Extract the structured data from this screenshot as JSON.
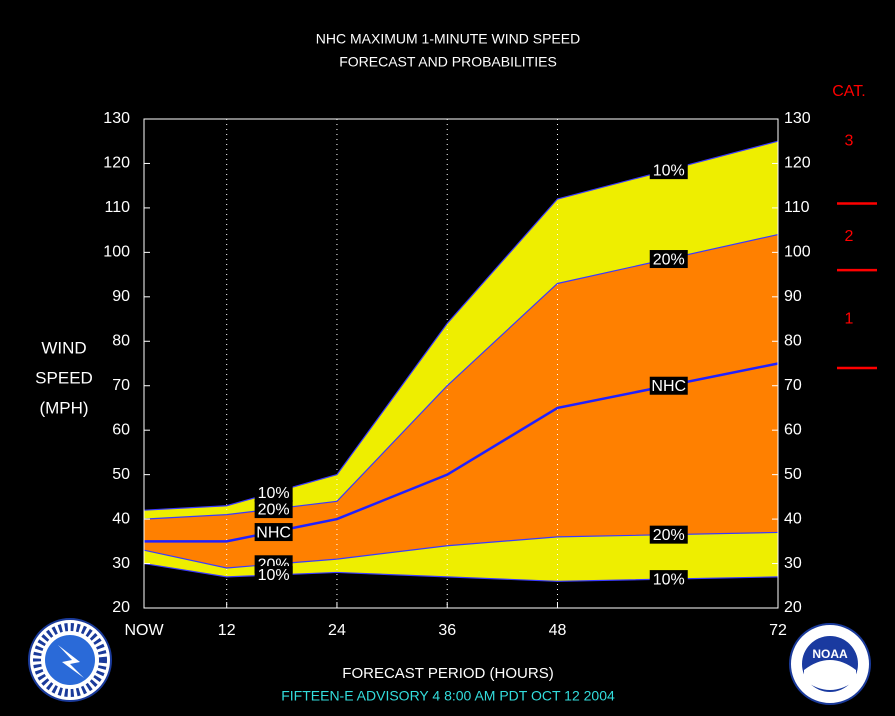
{
  "chart_data": {
    "type": "band-line",
    "title": [
      "NHC MAXIMUM 1-MINUTE WIND SPEED",
      "FORECAST AND PROBABILITIES"
    ],
    "y_label": [
      "WIND",
      "SPEED",
      "(MPH)"
    ],
    "x_label": "FORECAST PERIOD (HOURS)",
    "footer": "FIFTEEN-E   ADVISORY  4 8:00 AM PDT OCT 12 2004",
    "x": [
      3,
      12,
      24,
      36,
      48,
      72
    ],
    "xlim": [
      3,
      72
    ],
    "xticks": [
      {
        "value": 3,
        "label": "NOW"
      },
      12,
      24,
      36,
      48,
      72
    ],
    "ylim": [
      20,
      130
    ],
    "yticks": [
      20,
      30,
      40,
      50,
      60,
      70,
      80,
      90,
      100,
      110,
      120,
      130
    ],
    "grid": true,
    "series": [
      {
        "name": "10%",
        "color": "#3a3aff",
        "fill": "#eeee00",
        "values": [
          42,
          43,
          50,
          84,
          112,
          125
        ]
      },
      {
        "name": "20%",
        "color": "#3a3aff",
        "fill": "#ff8000",
        "values": [
          40,
          41,
          44,
          70,
          93,
          104
        ]
      },
      {
        "name": "NHC",
        "color": "#2020ff",
        "fill": "#ff8000",
        "values": [
          35,
          35,
          40,
          50,
          65,
          75
        ]
      },
      {
        "name": "20%",
        "color": "#3a3aff",
        "fill": "#eeee00",
        "values": [
          33,
          29,
          31,
          34,
          36,
          37
        ]
      },
      {
        "name": "10%",
        "color": "#3a3aff",
        "values": [
          30,
          27,
          28,
          27,
          26,
          27
        ]
      }
    ],
    "category_scale": {
      "title": "CAT.",
      "color": "#ff0000",
      "thresholds": [
        74,
        96,
        111
      ],
      "labels": [
        "1",
        "2",
        "3"
      ]
    },
    "logo_text": "NOAA"
  }
}
